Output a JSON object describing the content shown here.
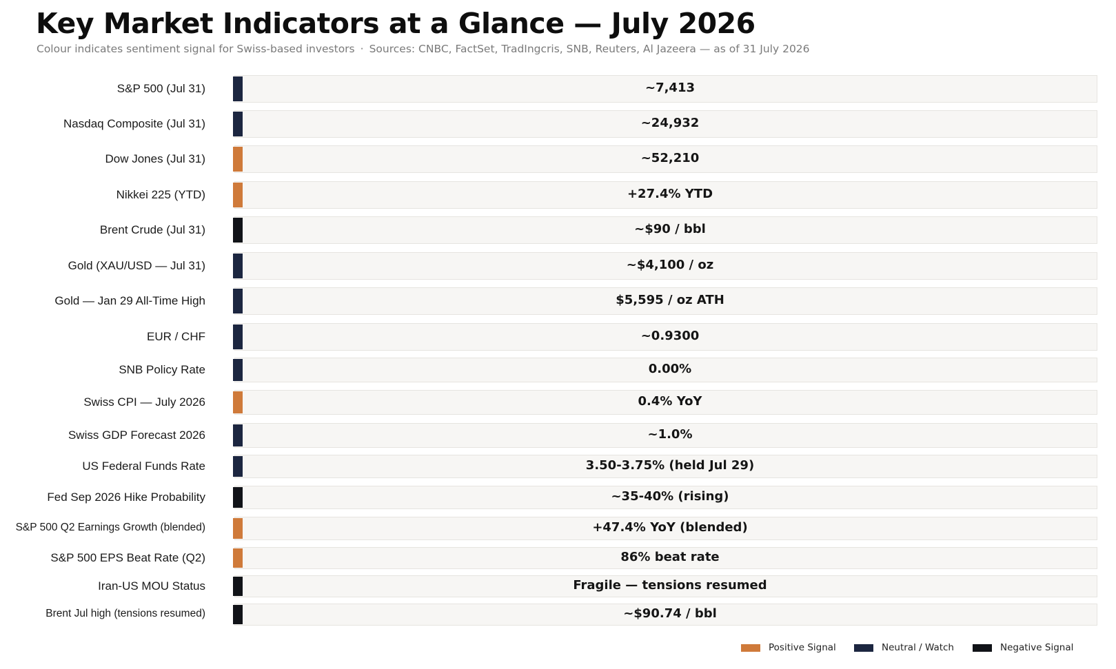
{
  "title": "Key Market Indicators at a Glance — July 2026",
  "subtitle": {
    "part1": "Colour indicates sentiment signal for Swiss-based investors",
    "separator": "·",
    "part2": "Sources: CNBC, FactSet, TradIngcris, SNB, Reuters, Al Jazeera — as of 31 July 2026"
  },
  "colors": {
    "positive": "#cf7a3a",
    "neutral": "#1c2640",
    "negative": "#111318"
  },
  "legend": [
    {
      "label": "Positive Signal",
      "signal": "positive"
    },
    {
      "label": "Neutral / Watch",
      "signal": "neutral"
    },
    {
      "label": "Negative Signal",
      "signal": "negative"
    }
  ],
  "chart_data": {
    "type": "table",
    "rows": [
      {
        "label": "S&P 500 (Jul 31)",
        "value": "~7,413",
        "signal": "neutral"
      },
      {
        "label": "Nasdaq Composite (Jul 31)",
        "value": "~24,932",
        "signal": "neutral"
      },
      {
        "label": "Dow Jones (Jul 31)",
        "value": "~52,210",
        "signal": "positive"
      },
      {
        "label": "Nikkei 225 (YTD)",
        "value": "+27.4% YTD",
        "signal": "positive"
      },
      {
        "label": "Brent Crude (Jul 31)",
        "value": "~$90 / bbl",
        "signal": "negative"
      },
      {
        "label": "Gold (XAU/USD — Jul 31)",
        "value": "~$4,100 / oz",
        "signal": "neutral"
      },
      {
        "label": "Gold — Jan 29 All-Time High",
        "value": "$5,595 / oz ATH",
        "signal": "neutral"
      },
      {
        "label": "EUR / CHF",
        "value": "~0.9300",
        "signal": "neutral"
      },
      {
        "label": "SNB Policy Rate",
        "value": "0.00%",
        "signal": "neutral"
      },
      {
        "label": "Swiss CPI — July 2026",
        "value": "0.4% YoY",
        "signal": "positive"
      },
      {
        "label": "Swiss GDP Forecast 2026",
        "value": "~1.0%",
        "signal": "neutral"
      },
      {
        "label": "US Federal Funds Rate",
        "value": "3.50-3.75% (held Jul 29)",
        "signal": "neutral"
      },
      {
        "label": "Fed Sep 2026 Hike Probability",
        "value": "~35-40% (rising)",
        "signal": "negative"
      },
      {
        "label": "S&P 500 Q2 Earnings Growth (blended)",
        "value": "+47.4% YoY (blended)",
        "signal": "positive"
      },
      {
        "label": "S&P 500 EPS Beat Rate (Q2)",
        "value": "86% beat rate",
        "signal": "positive"
      },
      {
        "label": "Iran-US MOU Status",
        "value": "Fragile — tensions resumed",
        "signal": "negative"
      },
      {
        "label": "Brent Jul high (tensions resumed)",
        "value": "~$90.74 / bbl",
        "signal": "negative"
      }
    ]
  }
}
